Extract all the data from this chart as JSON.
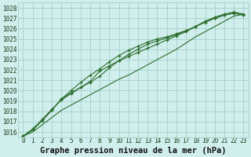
{
  "background_color": "#d0eeec",
  "grid_color": "#a8d4d0",
  "line_color": "#2d6e2d",
  "marker_color": "#2d6e2d",
  "xlabel": "Graphe pression niveau de la mer (hPa)",
  "xlabel_fontsize": 7.5,
  "tick_fontsize": 5.5,
  "xlim": [
    -0.5,
    23.5
  ],
  "ylim": [
    1015.5,
    1028.5
  ],
  "yticks": [
    1016,
    1017,
    1018,
    1019,
    1020,
    1021,
    1022,
    1023,
    1024,
    1025,
    1026,
    1027,
    1028
  ],
  "xticks": [
    0,
    1,
    2,
    3,
    4,
    5,
    6,
    7,
    8,
    9,
    10,
    11,
    12,
    13,
    14,
    15,
    16,
    17,
    18,
    19,
    20,
    21,
    22,
    23
  ],
  "series": [
    {
      "x": [
        0,
        1,
        2,
        3,
        4,
        5,
        6,
        7,
        8,
        9,
        10,
        11,
        12,
        13,
        14,
        15,
        16,
        17,
        18,
        19,
        20,
        21,
        22,
        23
      ],
      "y": [
        1015.6,
        1016.2,
        1017.1,
        1018.1,
        1019.2,
        1019.8,
        1020.3,
        1020.8,
        1021.4,
        1022.2,
        1022.9,
        1023.5,
        1024.0,
        1024.5,
        1024.8,
        1025.1,
        1025.4,
        1025.8,
        1026.2,
        1026.7,
        1027.0,
        1027.3,
        1027.5,
        1027.3
      ],
      "marker": "+"
    },
    {
      "x": [
        0,
        1,
        2,
        3,
        4,
        5,
        6,
        7,
        8,
        9,
        10,
        11,
        12,
        13,
        14,
        15,
        16,
        17,
        18,
        19,
        20,
        21,
        22,
        23
      ],
      "y": [
        1015.6,
        1016.2,
        1017.2,
        1018.1,
        1019.2,
        1020.0,
        1020.8,
        1021.5,
        1022.1,
        1022.8,
        1023.4,
        1023.9,
        1024.3,
        1024.7,
        1025.0,
        1025.2,
        1025.5,
        1025.8,
        1026.2,
        1026.6,
        1027.0,
        1027.3,
        1027.5,
        1027.3
      ],
      "marker": "+"
    },
    {
      "x": [
        0,
        1,
        2,
        3,
        4,
        5,
        6,
        7,
        8,
        9,
        10,
        11,
        12,
        13,
        14,
        15,
        16,
        17,
        18,
        19,
        20,
        21,
        22,
        23
      ],
      "y": [
        1015.6,
        1016.3,
        1017.2,
        1018.2,
        1019.1,
        1019.7,
        1020.3,
        1020.9,
        1021.9,
        1022.4,
        1022.9,
        1023.3,
        1023.7,
        1024.1,
        1024.5,
        1024.9,
        1025.3,
        1025.7,
        1026.2,
        1026.7,
        1027.1,
        1027.4,
        1027.6,
        1027.4
      ],
      "marker": "+"
    },
    {
      "x": [
        0,
        1,
        2,
        3,
        4,
        5,
        6,
        7,
        8,
        9,
        10,
        11,
        12,
        13,
        14,
        15,
        16,
        17,
        18,
        19,
        20,
        21,
        22,
        23
      ],
      "y": [
        1015.6,
        1016.0,
        1016.7,
        1017.4,
        1018.1,
        1018.6,
        1019.1,
        1019.6,
        1020.1,
        1020.6,
        1021.1,
        1021.5,
        1022.0,
        1022.5,
        1023.0,
        1023.5,
        1024.0,
        1024.6,
        1025.2,
        1025.7,
        1026.2,
        1026.7,
        1027.2,
        1027.4
      ],
      "marker": null
    }
  ]
}
